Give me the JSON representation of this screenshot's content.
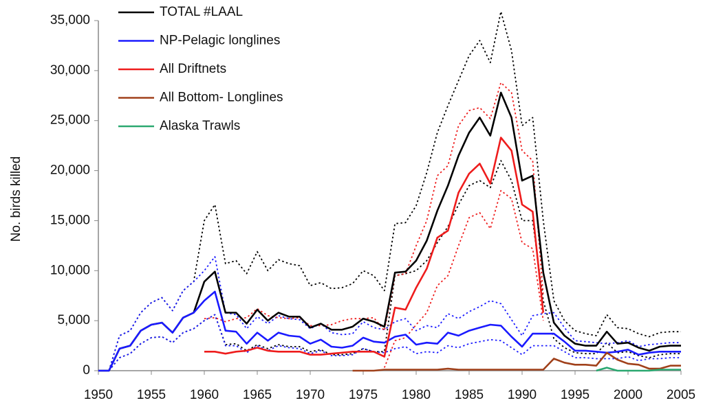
{
  "chart_data": {
    "type": "line",
    "y_label": "No. birds killed",
    "x": [
      1950,
      1951,
      1952,
      1953,
      1954,
      1955,
      1956,
      1957,
      1958,
      1959,
      1960,
      1961,
      1962,
      1963,
      1964,
      1965,
      1966,
      1967,
      1968,
      1969,
      1970,
      1971,
      1972,
      1973,
      1974,
      1975,
      1976,
      1977,
      1978,
      1979,
      1980,
      1981,
      1982,
      1983,
      1984,
      1985,
      1986,
      1987,
      1988,
      1989,
      1990,
      1991,
      1992,
      1993,
      1994,
      1995,
      1996,
      1997,
      1998,
      1999,
      2000,
      2001,
      2002,
      2003,
      2004,
      2005
    ],
    "xlim": [
      1950,
      2005
    ],
    "xticks": [
      1950,
      1955,
      1960,
      1965,
      1970,
      1975,
      1980,
      1985,
      1990,
      1995,
      2000,
      2005
    ],
    "ylim": [
      0,
      35000
    ],
    "yticks": [
      0,
      {
        "value": 5000,
        "label": "5,000"
      },
      {
        "value": 10000,
        "label": "10,000"
      },
      {
        "value": 15000,
        "label": "15,000"
      },
      {
        "value": 20000,
        "label": "20,000"
      },
      {
        "value": 25000,
        "label": "25,000"
      },
      {
        "value": 30000,
        "label": "30,000"
      },
      {
        "value": 35000,
        "label": "35,000"
      }
    ],
    "legend": "top-left",
    "series": [
      {
        "name": "TOTAL #LAAL",
        "color": "#000000",
        "values": [
          0,
          0,
          2200,
          2500,
          4000,
          4600,
          4800,
          3800,
          5300,
          5800,
          8900,
          9900,
          5800,
          5800,
          4700,
          6100,
          5000,
          5800,
          5400,
          5400,
          4300,
          4700,
          4100,
          4100,
          4400,
          5200,
          4900,
          4400,
          9800,
          9900,
          11000,
          13000,
          16000,
          18500,
          21500,
          23800,
          25300,
          23500,
          27800,
          25300,
          19000,
          19500,
          9800,
          4800,
          3500,
          2700,
          2500,
          2500,
          3900,
          2700,
          2800,
          2300,
          2000,
          2400,
          2500,
          2500
        ]
      },
      {
        "name": "NP-Pelagic longlines",
        "color": "#1a1aff",
        "values": [
          0,
          0,
          2200,
          2500,
          4000,
          4600,
          4800,
          3800,
          5300,
          5800,
          7000,
          7900,
          4000,
          3900,
          2700,
          3800,
          3000,
          3800,
          3500,
          3400,
          2700,
          3100,
          2400,
          2300,
          2500,
          3300,
          2900,
          2800,
          3400,
          3600,
          2600,
          2800,
          2700,
          3800,
          3500,
          4000,
          4300,
          4600,
          4500,
          3400,
          2400,
          3700,
          3700,
          3700,
          2900,
          2000,
          2000,
          1900,
          1800,
          1900,
          2100,
          1600,
          1800,
          1900,
          1900,
          1900
        ]
      },
      {
        "name": "All Driftnets",
        "color": "#ee1c1c",
        "values": [
          null,
          null,
          null,
          null,
          null,
          null,
          null,
          null,
          null,
          null,
          1900,
          1900,
          1700,
          1900,
          2000,
          2300,
          2000,
          1900,
          1900,
          1900,
          1600,
          1600,
          1700,
          1800,
          1900,
          1900,
          1900,
          1400,
          6300,
          6100,
          8300,
          10200,
          13300,
          14000,
          17800,
          19700,
          20700,
          18700,
          23300,
          22000,
          16600,
          15900,
          5800,
          null,
          null,
          null,
          null,
          null,
          null,
          null,
          null,
          null,
          null,
          null,
          null,
          null
        ]
      },
      {
        "name": "All Bottom- Longlines",
        "color": "#a0401a",
        "values": [
          null,
          null,
          null,
          null,
          null,
          null,
          null,
          null,
          null,
          null,
          null,
          null,
          null,
          null,
          null,
          null,
          null,
          null,
          null,
          null,
          null,
          null,
          null,
          null,
          0,
          0,
          0,
          100,
          100,
          100,
          100,
          100,
          100,
          200,
          100,
          100,
          100,
          100,
          100,
          100,
          100,
          100,
          100,
          1200,
          800,
          600,
          600,
          500,
          1800,
          1100,
          700,
          600,
          200,
          200,
          500,
          500
        ]
      },
      {
        "name": "Alaska Trawls",
        "color": "#2aa870",
        "values": [
          null,
          null,
          null,
          null,
          null,
          null,
          null,
          null,
          null,
          null,
          null,
          null,
          null,
          null,
          null,
          null,
          null,
          null,
          null,
          null,
          null,
          null,
          null,
          null,
          null,
          null,
          null,
          null,
          null,
          null,
          null,
          null,
          null,
          null,
          null,
          null,
          null,
          null,
          null,
          null,
          null,
          null,
          null,
          null,
          null,
          null,
          null,
          0,
          300,
          0,
          0,
          0,
          0,
          100,
          100,
          100
        ]
      },
      {
        "color": "#000000",
        "dashed": true,
        "values": [
          null,
          0,
          3500,
          4000,
          5800,
          6800,
          7300,
          6000,
          8000,
          8900,
          15000,
          16600,
          10700,
          11000,
          9700,
          11900,
          10000,
          11100,
          10700,
          10500,
          8500,
          8800,
          8200,
          8300,
          8700,
          10000,
          9500,
          8000,
          14700,
          14800,
          16500,
          19800,
          23800,
          26500,
          29000,
          31500,
          33000,
          30800,
          35900,
          32000,
          24500,
          25300,
          15000,
          7000,
          5000,
          4000,
          3700,
          3500,
          5600,
          4300,
          4200,
          3700,
          3400,
          3800,
          3900,
          3900
        ]
      },
      {
        "color": "#000000",
        "dashed": true,
        "values": [
          null,
          0,
          1300,
          1700,
          2700,
          3300,
          3400,
          2800,
          3800,
          4200,
          5000,
          5600,
          2600,
          2700,
          2000,
          2600,
          2200,
          2600,
          2400,
          2400,
          1900,
          2100,
          1600,
          1600,
          1700,
          2200,
          1900,
          1900,
          9500,
          9700,
          10000,
          11000,
          12800,
          14400,
          16600,
          18500,
          19000,
          18300,
          21000,
          19000,
          15000,
          15000,
          7000,
          3200,
          2300,
          1800,
          1700,
          1700,
          2800,
          1800,
          1900,
          1500,
          1300,
          1600,
          1700,
          1700
        ]
      },
      {
        "color": "#1a1aff",
        "dashed": true,
        "values": [
          null,
          0,
          3500,
          4000,
          5800,
          6800,
          7300,
          6000,
          8000,
          8900,
          10000,
          11400,
          5800,
          5600,
          4200,
          5400,
          4700,
          5500,
          5200,
          5100,
          4200,
          4700,
          3800,
          3600,
          3700,
          4900,
          4300,
          4100,
          4900,
          5200,
          4000,
          4500,
          4300,
          5700,
          5200,
          5900,
          6400,
          7000,
          6700,
          5100,
          3500,
          5500,
          5700,
          5800,
          4300,
          3000,
          2900,
          2800,
          2700,
          2800,
          3000,
          2400,
          2600,
          2700,
          2800,
          2800
        ]
      },
      {
        "color": "#1a1aff",
        "dashed": true,
        "values": [
          null,
          0,
          1300,
          1700,
          2700,
          3300,
          3400,
          2800,
          3800,
          4200,
          5000,
          5600,
          2500,
          2500,
          1800,
          2500,
          2000,
          2500,
          2300,
          2200,
          1700,
          2000,
          1500,
          1500,
          1600,
          2200,
          1900,
          1800,
          2200,
          2400,
          1700,
          1900,
          1800,
          2500,
          2300,
          2700,
          2900,
          3100,
          3000,
          2300,
          1600,
          2500,
          2500,
          2500,
          1900,
          1300,
          1300,
          1200,
          1200,
          1200,
          1400,
          1000,
          1200,
          1200,
          1300,
          1300
        ]
      },
      {
        "color": "#ee1c1c",
        "dashed": true,
        "values": [
          null,
          null,
          null,
          null,
          null,
          null,
          null,
          null,
          null,
          null,
          5200,
          5300,
          4900,
          5200,
          5300,
          6200,
          5500,
          5300,
          5200,
          5300,
          4500,
          4500,
          4600,
          5000,
          5200,
          5200,
          5300,
          4000,
          9500,
          9700,
          12500,
          15000,
          19500,
          20500,
          24500,
          26000,
          26300,
          25200,
          28800,
          27800,
          22000,
          21000,
          7500,
          null,
          null,
          null,
          null,
          null,
          null,
          null,
          null,
          null,
          null,
          null,
          null,
          null
        ]
      },
      {
        "color": "#ee1c1c",
        "dashed": true,
        "values": [
          null,
          null,
          null,
          null,
          null,
          null,
          null,
          null,
          null,
          null,
          null,
          null,
          null,
          null,
          null,
          null,
          null,
          null,
          null,
          null,
          null,
          null,
          null,
          null,
          null,
          null,
          null,
          300,
          3000,
          3300,
          4600,
          5800,
          8500,
          9500,
          12500,
          15300,
          15800,
          14200,
          18000,
          17200,
          12800,
          12200,
          5000,
          null,
          null,
          null,
          null,
          null,
          null,
          null,
          null,
          null,
          null,
          null,
          null,
          null
        ]
      }
    ]
  }
}
